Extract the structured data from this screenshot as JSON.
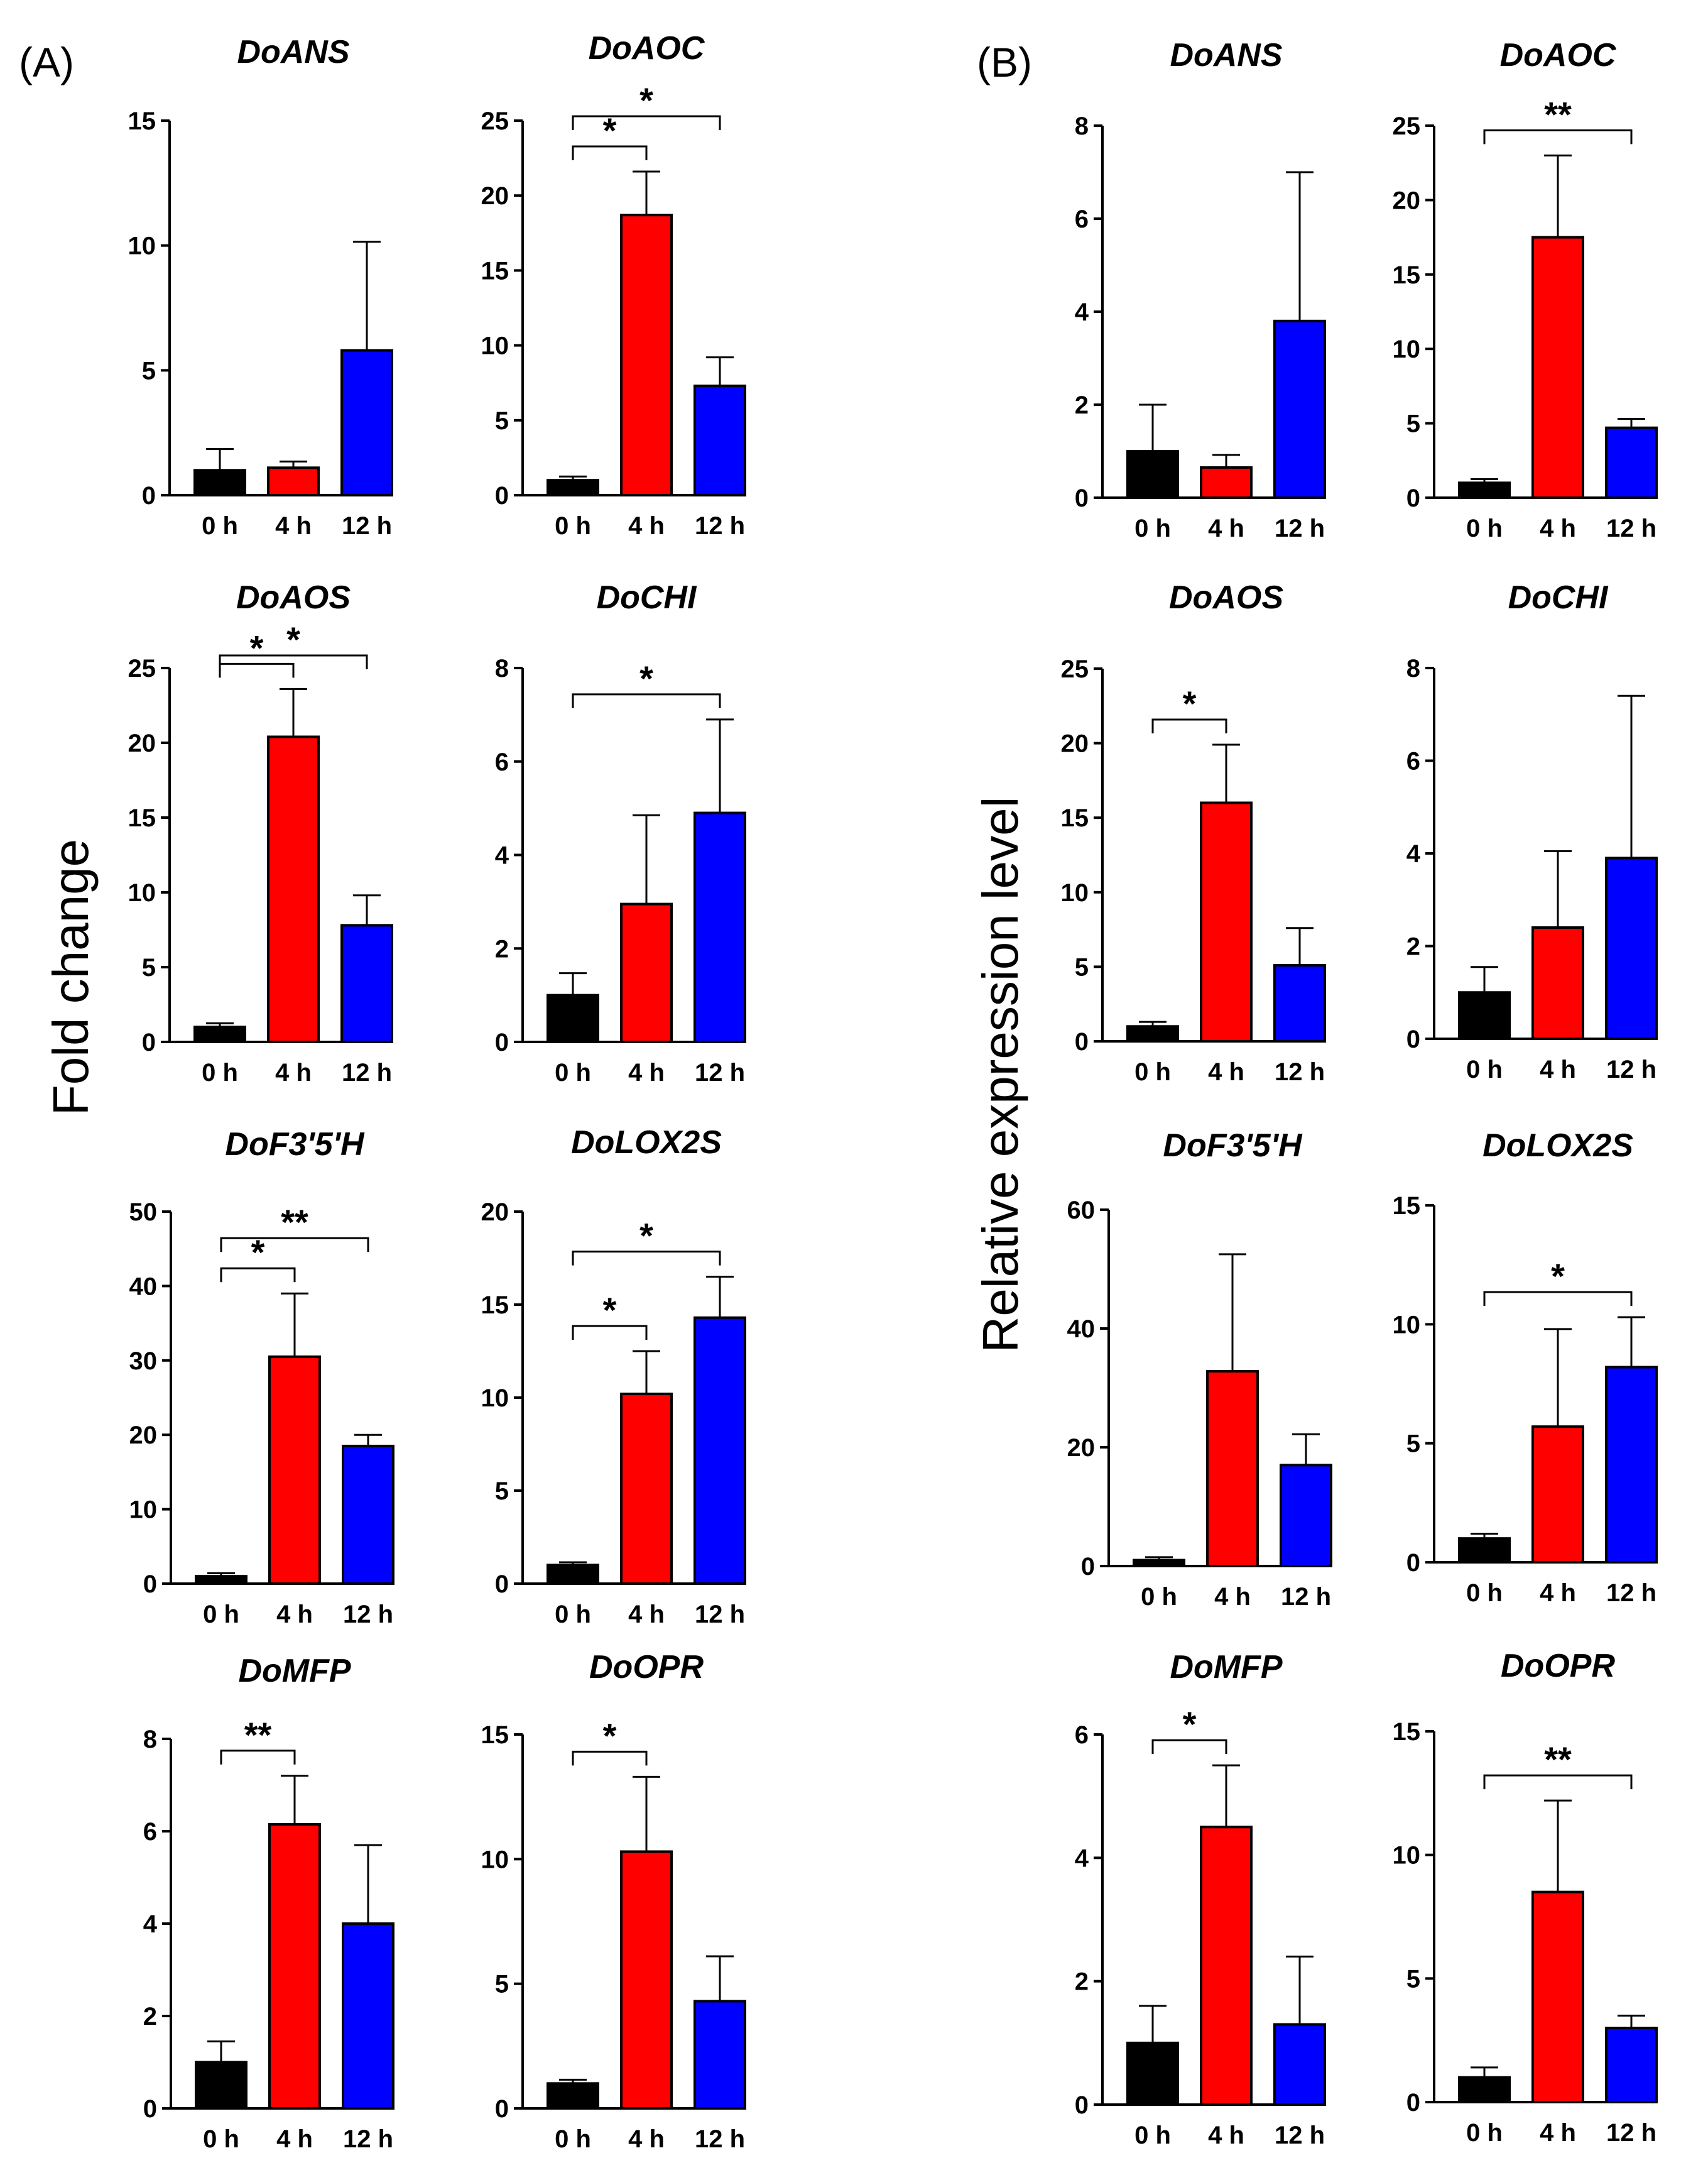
{
  "figure": {
    "panel_a_label": "(A)",
    "panel_b_label": "(B)",
    "panel_a_ylabel": "Fold change",
    "panel_b_ylabel": "Relative expression level"
  },
  "colors": {
    "0 h": "#000000",
    "4 h": "#ff0000",
    "12 h": "#0000ff"
  },
  "chart_data": [
    {
      "panel": "A",
      "type": "bar",
      "title": "DoANS",
      "categories": [
        "0 h",
        "4 h",
        "12 h"
      ],
      "values": [
        1.0,
        1.1,
        5.8
      ],
      "errors": [
        0.85,
        0.25,
        4.35
      ],
      "ylim": [
        0,
        15
      ],
      "yticks": [
        0,
        5,
        10,
        15
      ],
      "significance": []
    },
    {
      "panel": "A",
      "type": "bar",
      "title": "DoAOC",
      "categories": [
        "0 h",
        "4 h",
        "12 h"
      ],
      "values": [
        1.0,
        18.7,
        7.3
      ],
      "errors": [
        0.25,
        2.9,
        1.9
      ],
      "ylim": [
        0,
        25
      ],
      "yticks": [
        0,
        5,
        10,
        15,
        20,
        25
      ],
      "significance": [
        {
          "from": 0,
          "to": 1,
          "label": "*"
        },
        {
          "from": 0,
          "to": 2,
          "label": "*"
        }
      ]
    },
    {
      "panel": "A",
      "type": "bar",
      "title": "DoAOS",
      "categories": [
        "0 h",
        "4 h",
        "12 h"
      ],
      "values": [
        1.0,
        20.4,
        7.8
      ],
      "errors": [
        0.25,
        3.2,
        2.0
      ],
      "ylim": [
        0,
        25
      ],
      "yticks": [
        0,
        5,
        10,
        15,
        20,
        25
      ],
      "significance": [
        {
          "from": 0,
          "to": 1,
          "label": "*"
        },
        {
          "from": 0,
          "to": 2,
          "label": "*"
        }
      ]
    },
    {
      "panel": "A",
      "type": "bar",
      "title": "DoCHI",
      "categories": [
        "0 h",
        "4 h",
        "12 h"
      ],
      "values": [
        1.0,
        2.95,
        4.9
      ],
      "errors": [
        0.47,
        1.9,
        2.0
      ],
      "ylim": [
        0,
        8
      ],
      "yticks": [
        0,
        2,
        4,
        6,
        8
      ],
      "significance": [
        {
          "from": 0,
          "to": 2,
          "label": "*"
        }
      ]
    },
    {
      "panel": "A",
      "type": "bar",
      "title": "DoF3'5'H",
      "categories": [
        "0 h",
        "4 h",
        "12 h"
      ],
      "values": [
        1.0,
        30.5,
        18.5
      ],
      "errors": [
        0.4,
        8.5,
        1.5
      ],
      "ylim": [
        0,
        50
      ],
      "yticks": [
        0,
        10,
        20,
        30,
        40,
        50
      ],
      "significance": [
        {
          "from": 0,
          "to": 1,
          "label": "*"
        },
        {
          "from": 0,
          "to": 2,
          "label": "**"
        }
      ]
    },
    {
      "panel": "A",
      "type": "bar",
      "title": "DoLOX2S",
      "categories": [
        "0 h",
        "4 h",
        "12 h"
      ],
      "values": [
        1.0,
        10.2,
        14.3
      ],
      "errors": [
        0.15,
        2.3,
        2.2
      ],
      "ylim": [
        0,
        20
      ],
      "yticks": [
        0,
        5,
        10,
        15,
        20
      ],
      "significance": [
        {
          "from": 0,
          "to": 1,
          "label": "*"
        },
        {
          "from": 0,
          "to": 2,
          "label": "*"
        }
      ]
    },
    {
      "panel": "A",
      "type": "bar",
      "title": "DoMFP",
      "categories": [
        "0 h",
        "4 h",
        "12 h"
      ],
      "values": [
        1.0,
        6.15,
        4.0
      ],
      "errors": [
        0.45,
        1.05,
        1.7
      ],
      "ylim": [
        0,
        8
      ],
      "yticks": [
        0,
        2,
        4,
        6,
        8
      ],
      "significance": [
        {
          "from": 0,
          "to": 1,
          "label": "**"
        }
      ]
    },
    {
      "panel": "A",
      "type": "bar",
      "title": "DoOPR",
      "categories": [
        "0 h",
        "4 h",
        "12 h"
      ],
      "values": [
        1.0,
        10.3,
        4.3
      ],
      "errors": [
        0.15,
        3.0,
        1.8
      ],
      "ylim": [
        0,
        15
      ],
      "yticks": [
        0,
        5,
        10,
        15
      ],
      "significance": [
        {
          "from": 0,
          "to": 1,
          "label": "*"
        }
      ]
    },
    {
      "panel": "B",
      "type": "bar",
      "title": "DoANS",
      "categories": [
        "0 h",
        "4 h",
        "12 h"
      ],
      "values": [
        1.0,
        0.65,
        3.8
      ],
      "errors": [
        1.0,
        0.27,
        3.2
      ],
      "ylim": [
        0,
        8
      ],
      "yticks": [
        0,
        2,
        4,
        6,
        8
      ],
      "significance": []
    },
    {
      "panel": "B",
      "type": "bar",
      "title": "DoAOC",
      "categories": [
        "0 h",
        "4 h",
        "12 h"
      ],
      "values": [
        1.0,
        17.5,
        4.7
      ],
      "errors": [
        0.25,
        5.5,
        0.6
      ],
      "ylim": [
        0,
        25
      ],
      "yticks": [
        0,
        5,
        10,
        15,
        20,
        25
      ],
      "significance": [
        {
          "from": 0,
          "to": 2,
          "label": "**"
        }
      ]
    },
    {
      "panel": "B",
      "type": "bar",
      "title": "DoAOS",
      "categories": [
        "0 h",
        "4 h",
        "12 h"
      ],
      "values": [
        1.0,
        16.0,
        5.1
      ],
      "errors": [
        0.3,
        3.9,
        2.5
      ],
      "ylim": [
        0,
        25
      ],
      "yticks": [
        0,
        5,
        10,
        15,
        20,
        25
      ],
      "significance": [
        {
          "from": 0,
          "to": 1,
          "label": "*"
        }
      ]
    },
    {
      "panel": "B",
      "type": "bar",
      "title": "DoCHI",
      "categories": [
        "0 h",
        "4 h",
        "12 h"
      ],
      "values": [
        1.0,
        2.4,
        3.9
      ],
      "errors": [
        0.55,
        1.65,
        3.5
      ],
      "ylim": [
        0,
        8
      ],
      "yticks": [
        0,
        2,
        4,
        6,
        8
      ],
      "significance": []
    },
    {
      "panel": "B",
      "type": "bar",
      "title": "DoF3'5'H",
      "categories": [
        "0 h",
        "4 h",
        "12 h"
      ],
      "values": [
        1.0,
        32.8,
        17.0
      ],
      "errors": [
        0.5,
        19.7,
        5.2
      ],
      "ylim": [
        0,
        60
      ],
      "yticks": [
        0,
        20,
        40,
        60
      ],
      "significance": []
    },
    {
      "panel": "B",
      "type": "bar",
      "title": "DoLOX2S",
      "categories": [
        "0 h",
        "4 h",
        "12 h"
      ],
      "values": [
        1.0,
        5.7,
        8.2
      ],
      "errors": [
        0.2,
        4.1,
        2.1
      ],
      "ylim": [
        0,
        15
      ],
      "yticks": [
        0,
        5,
        10,
        15
      ],
      "significance": [
        {
          "from": 0,
          "to": 2,
          "label": "*"
        }
      ]
    },
    {
      "panel": "B",
      "type": "bar",
      "title": "DoMFP",
      "categories": [
        "0 h",
        "4 h",
        "12 h"
      ],
      "values": [
        1.0,
        4.5,
        1.3
      ],
      "errors": [
        0.6,
        1.0,
        1.1
      ],
      "ylim": [
        0,
        6
      ],
      "yticks": [
        0,
        2,
        4,
        6
      ],
      "significance": [
        {
          "from": 0,
          "to": 1,
          "label": "*"
        }
      ]
    },
    {
      "panel": "B",
      "type": "bar",
      "title": "DoOPR",
      "categories": [
        "0 h",
        "4 h",
        "12 h"
      ],
      "values": [
        1.0,
        8.5,
        3.0
      ],
      "errors": [
        0.4,
        3.7,
        0.5
      ],
      "ylim": [
        0,
        15
      ],
      "yticks": [
        0,
        5,
        10,
        15
      ],
      "significance": [
        {
          "from": 0,
          "to": 2,
          "label": "**"
        }
      ]
    }
  ]
}
